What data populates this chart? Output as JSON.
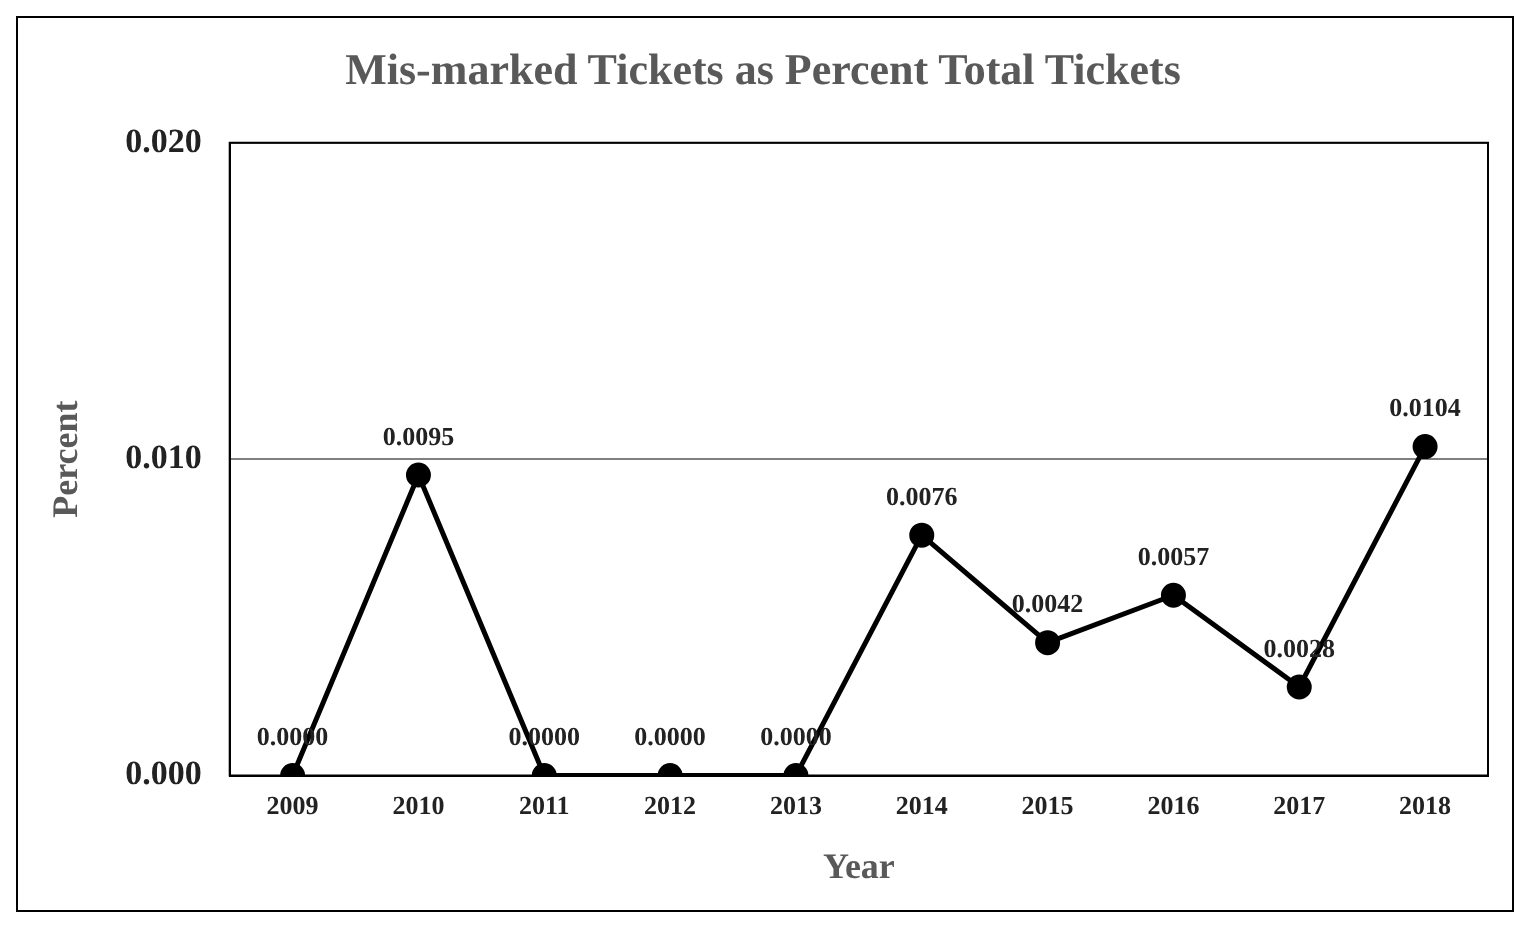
{
  "chart_data": {
    "type": "line",
    "title": "Mis-marked Tickets as Percent Total Tickets",
    "xlabel": "Year",
    "ylabel": "Percent",
    "categories": [
      "2009",
      "2010",
      "2011",
      "2012",
      "2013",
      "2014",
      "2015",
      "2016",
      "2017",
      "2018"
    ],
    "series": [
      {
        "color": "#000000",
        "values": [
          0,
          0.0095,
          0,
          0,
          0,
          0.0076,
          0.0042,
          0.0057,
          0.0028,
          0.0104
        ],
        "value_labels": [
          "0.0000",
          "0.0095",
          "0.0000",
          "0.0000",
          "0.0000",
          "0.0076",
          "0.0042",
          "0.0057",
          "0.0028",
          "0.0104"
        ]
      }
    ],
    "ylim": [
      0,
      0.02
    ],
    "yticks": [
      {
        "value": 0,
        "label": "0.000"
      },
      {
        "value": 0.01,
        "label": "0.010"
      },
      {
        "value": 0.02,
        "label": "0.020"
      }
    ],
    "grid": "y",
    "legend": false,
    "marker": "circle",
    "line_style": "solid"
  }
}
